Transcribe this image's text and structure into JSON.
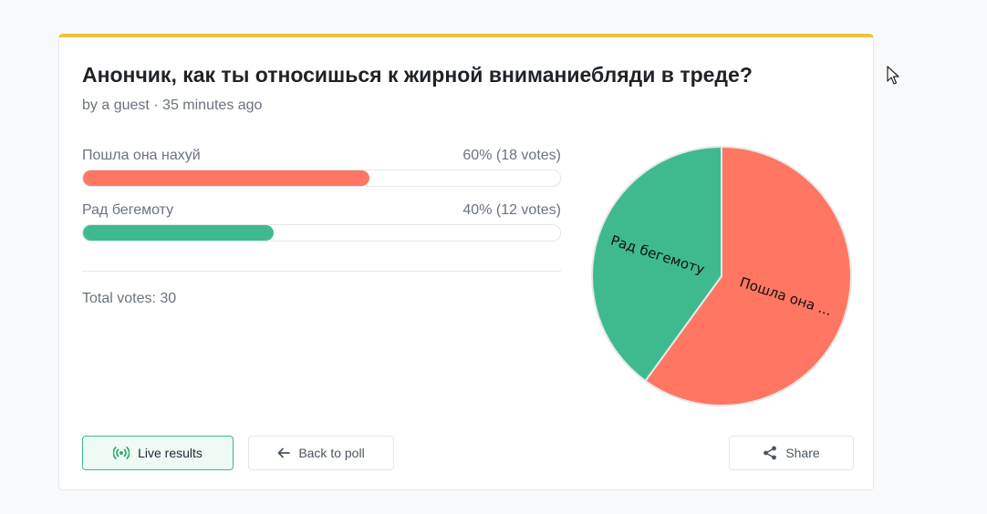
{
  "poll": {
    "title": "Анончик, как ты относишься к жирной вниманиебляди в треде?",
    "meta": "by a guest · 35 minutes ago",
    "options": [
      {
        "label": "Пошла она нахуй",
        "result": "60% (18 votes)",
        "percent": 60,
        "color": "#ff7662",
        "pie_label": "Пошла она ..."
      },
      {
        "label": "Рад бегемоту",
        "result": "40% (12 votes)",
        "percent": 40,
        "color": "#3fba8f",
        "pie_label": "Рад бегемоту"
      }
    ],
    "total": "Total votes: 30"
  },
  "buttons": {
    "live": "Live results",
    "back": "Back to poll",
    "share": "Share"
  },
  "icons": {
    "live": "broadcast-icon",
    "back": "arrow-left-icon",
    "share": "share-icon",
    "cursor": "mouse-pointer-icon"
  },
  "colors": {
    "accent_top": "#f0c23a",
    "live_border": "#3fb98c"
  }
}
